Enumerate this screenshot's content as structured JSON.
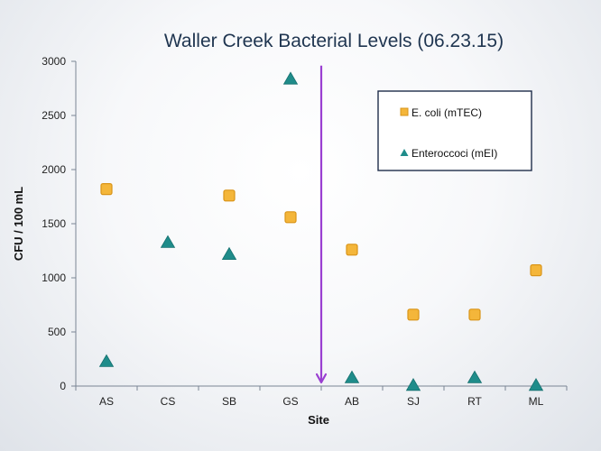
{
  "chart_data": {
    "type": "scatter",
    "title": "Waller Creek Bacterial Levels (06.23.15)",
    "xlabel": "Site",
    "ylabel": "CFU / 100 mL",
    "categories": [
      "AS",
      "CS",
      "SB",
      "GS",
      "AB",
      "SJ",
      "RT",
      "ML"
    ],
    "ylim": [
      0,
      3000
    ],
    "yticks": [
      0,
      500,
      1000,
      1500,
      2000,
      2500,
      3000
    ],
    "grid": false,
    "legend_position": "top-right",
    "series": [
      {
        "name": "E. coli (mTEC)",
        "marker": "square",
        "color": "#f4b63a",
        "values": [
          1820,
          null,
          1760,
          1560,
          1260,
          660,
          660,
          1070
        ]
      },
      {
        "name": "Enteroccoci (mEI)",
        "marker": "triangle",
        "color": "#1f8c8a",
        "values": [
          230,
          1330,
          1220,
          2840,
          80,
          10,
          80,
          10
        ]
      }
    ],
    "annotations": [
      {
        "type": "vertical-arrow",
        "between": [
          "GS",
          "AB"
        ],
        "from_y": 2960,
        "to_y": 0,
        "color": "#9a3fd1"
      }
    ]
  }
}
